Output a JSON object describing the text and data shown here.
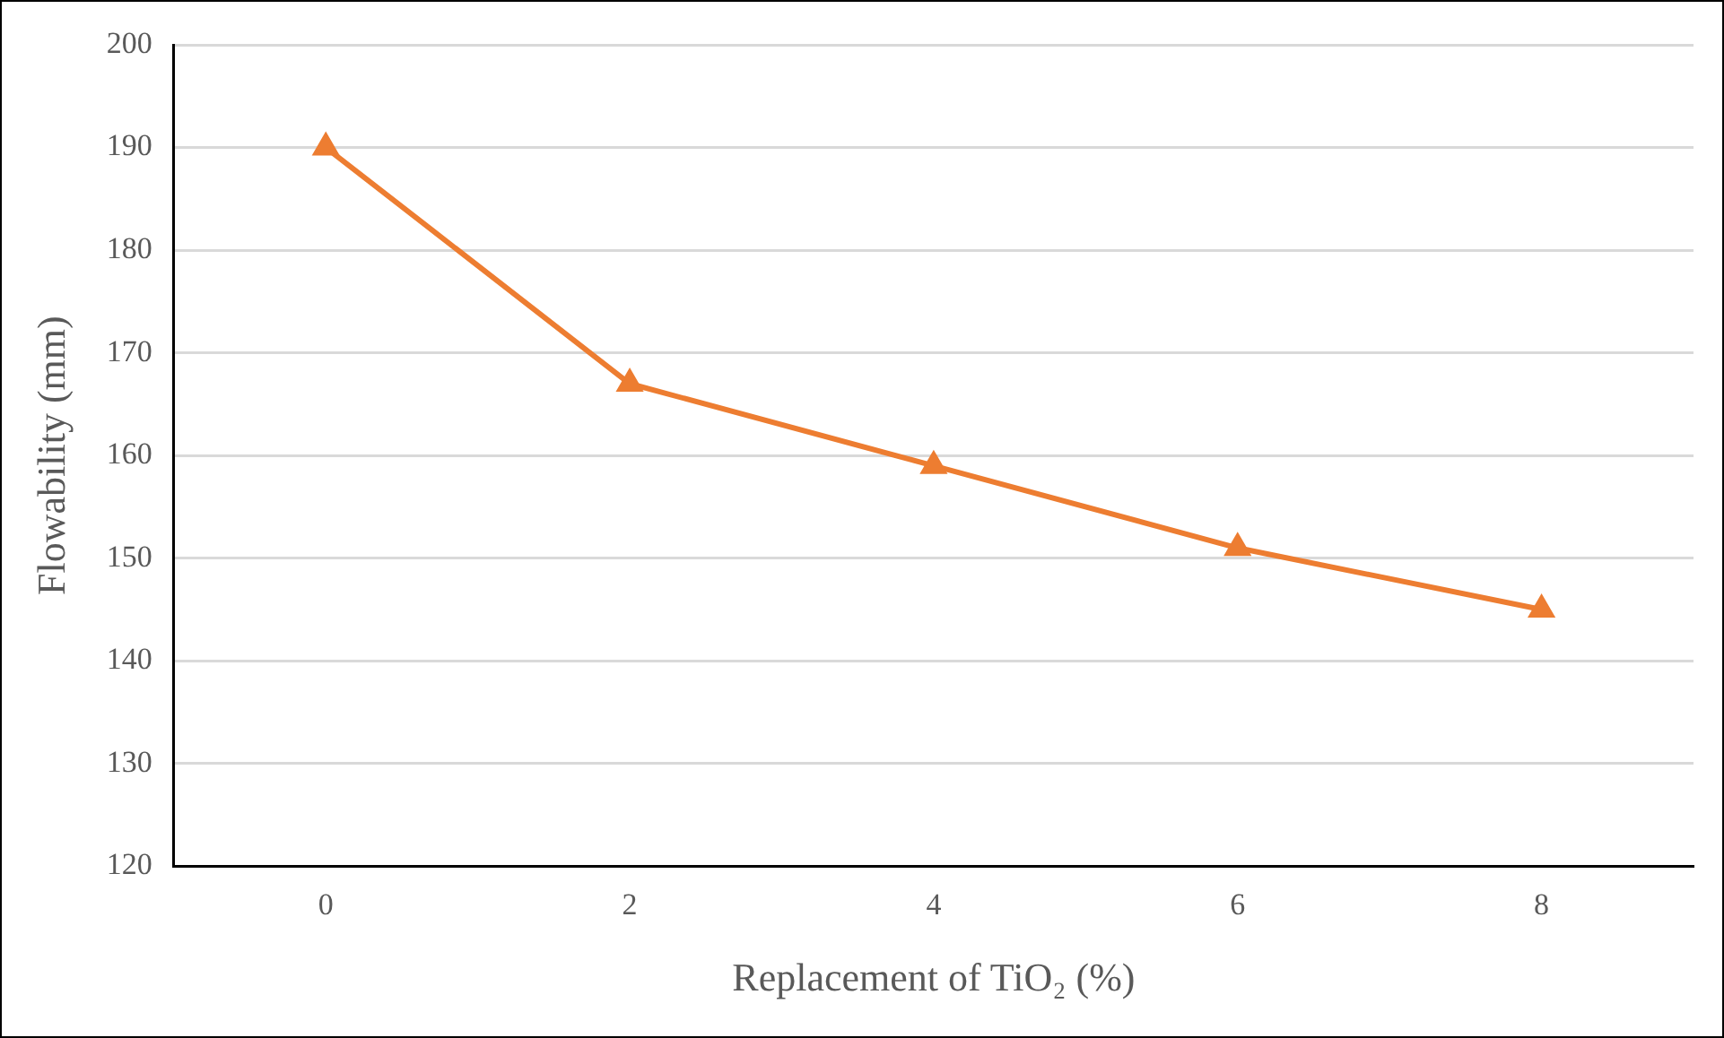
{
  "chart_data": {
    "type": "line",
    "xlabel": "Replacement of TiO₂ (%)",
    "ylabel": "Flowability (mm)",
    "categories": [
      "0",
      "2",
      "4",
      "6",
      "8"
    ],
    "series": [
      {
        "color": "#ed7d31",
        "values": [
          190,
          167,
          159,
          151,
          145
        ]
      }
    ],
    "ylim": [
      120,
      200
    ],
    "yticks": [
      120,
      130,
      140,
      150,
      160,
      170,
      180,
      190,
      200
    ],
    "grid": "y",
    "legend": false,
    "marker": "triangle",
    "line_style": "solid"
  }
}
